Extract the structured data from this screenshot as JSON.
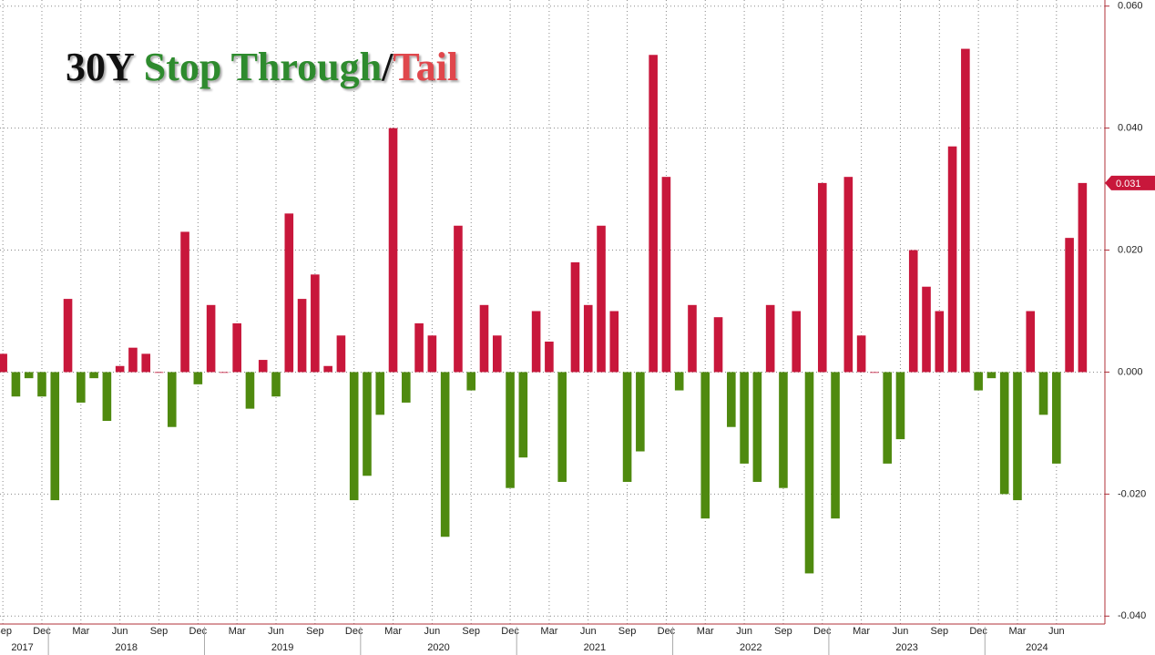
{
  "chart_data": {
    "type": "bar",
    "title_parts": [
      {
        "text": "30Y",
        "color": "#111111"
      },
      {
        "text": "Stop Through",
        "color": "#2e8b2e"
      },
      {
        "text": "/",
        "color": "#111111"
      },
      {
        "text": "Tail",
        "color": "#e0474c"
      }
    ],
    "categories": [
      "Sep",
      null,
      null,
      "Dec",
      null,
      null,
      "Mar",
      null,
      null,
      "Jun",
      null,
      null,
      "Sep",
      null,
      null,
      "Dec",
      null,
      null,
      "Mar",
      null,
      null,
      "Jun",
      null,
      null,
      "Sep",
      null,
      null,
      "Dec",
      null,
      null,
      "Mar",
      null,
      null,
      "Jun",
      null,
      null,
      "Sep",
      null,
      null,
      "Dec",
      null,
      null,
      "Mar",
      null,
      null,
      "Jun",
      null,
      null,
      "Sep",
      null,
      null,
      "Dec",
      null,
      null,
      "Mar",
      null,
      null,
      "Jun",
      null,
      null,
      "Sep",
      null,
      null,
      "Dec",
      null,
      null,
      "Mar",
      null,
      null,
      "Jun",
      null,
      null,
      "Sep",
      null,
      null,
      "Dec",
      null,
      null,
      "Mar",
      null,
      null,
      "Jun",
      null,
      null
    ],
    "years": [
      "2017",
      "2018",
      "2019",
      "2020",
      "2021",
      "2022",
      "2023",
      "2024"
    ],
    "values": [
      0.003,
      -0.004,
      -0.001,
      -0.004,
      -0.021,
      0.012,
      -0.005,
      -0.001,
      -0.008,
      0.001,
      0.004,
      0.003,
      0.0,
      -0.009,
      0.023,
      -0.002,
      0.011,
      0.0,
      0.008,
      -0.006,
      0.002,
      -0.004,
      0.026,
      0.012,
      0.016,
      0.001,
      0.006,
      -0.021,
      -0.017,
      -0.007,
      0.04,
      -0.005,
      0.008,
      0.006,
      -0.027,
      0.024,
      -0.003,
      0.011,
      0.006,
      -0.019,
      -0.014,
      0.01,
      0.005,
      -0.018,
      0.018,
      0.011,
      0.024,
      0.01,
      -0.018,
      -0.013,
      0.052,
      0.032,
      -0.003,
      0.011,
      -0.024,
      0.009,
      -0.009,
      -0.015,
      -0.018,
      0.011,
      -0.019,
      0.01,
      -0.033,
      0.031,
      -0.024,
      0.032,
      0.006,
      0.0,
      -0.015,
      -0.011,
      0.02,
      0.014,
      0.01,
      0.037,
      0.053,
      -0.003,
      -0.001,
      -0.02,
      -0.021,
      0.01,
      -0.007,
      -0.015,
      0.022,
      0.031
    ],
    "positive_color": "#c8173b",
    "negative_color": "#4f8a0f",
    "last_value_label": "0.031",
    "ylim": [
      -0.0413,
      0.061
    ],
    "yticks": [
      {
        "value": 0.06,
        "label": "0.060"
      },
      {
        "value": 0.04,
        "label": "0.040"
      },
      {
        "value": 0.02,
        "label": "0.020"
      },
      {
        "value": 0,
        "label": "0.000"
      },
      {
        "value": -0.02,
        "label": "-0.020"
      },
      {
        "value": -0.04,
        "label": "-0.040"
      }
    ],
    "grid": true
  }
}
